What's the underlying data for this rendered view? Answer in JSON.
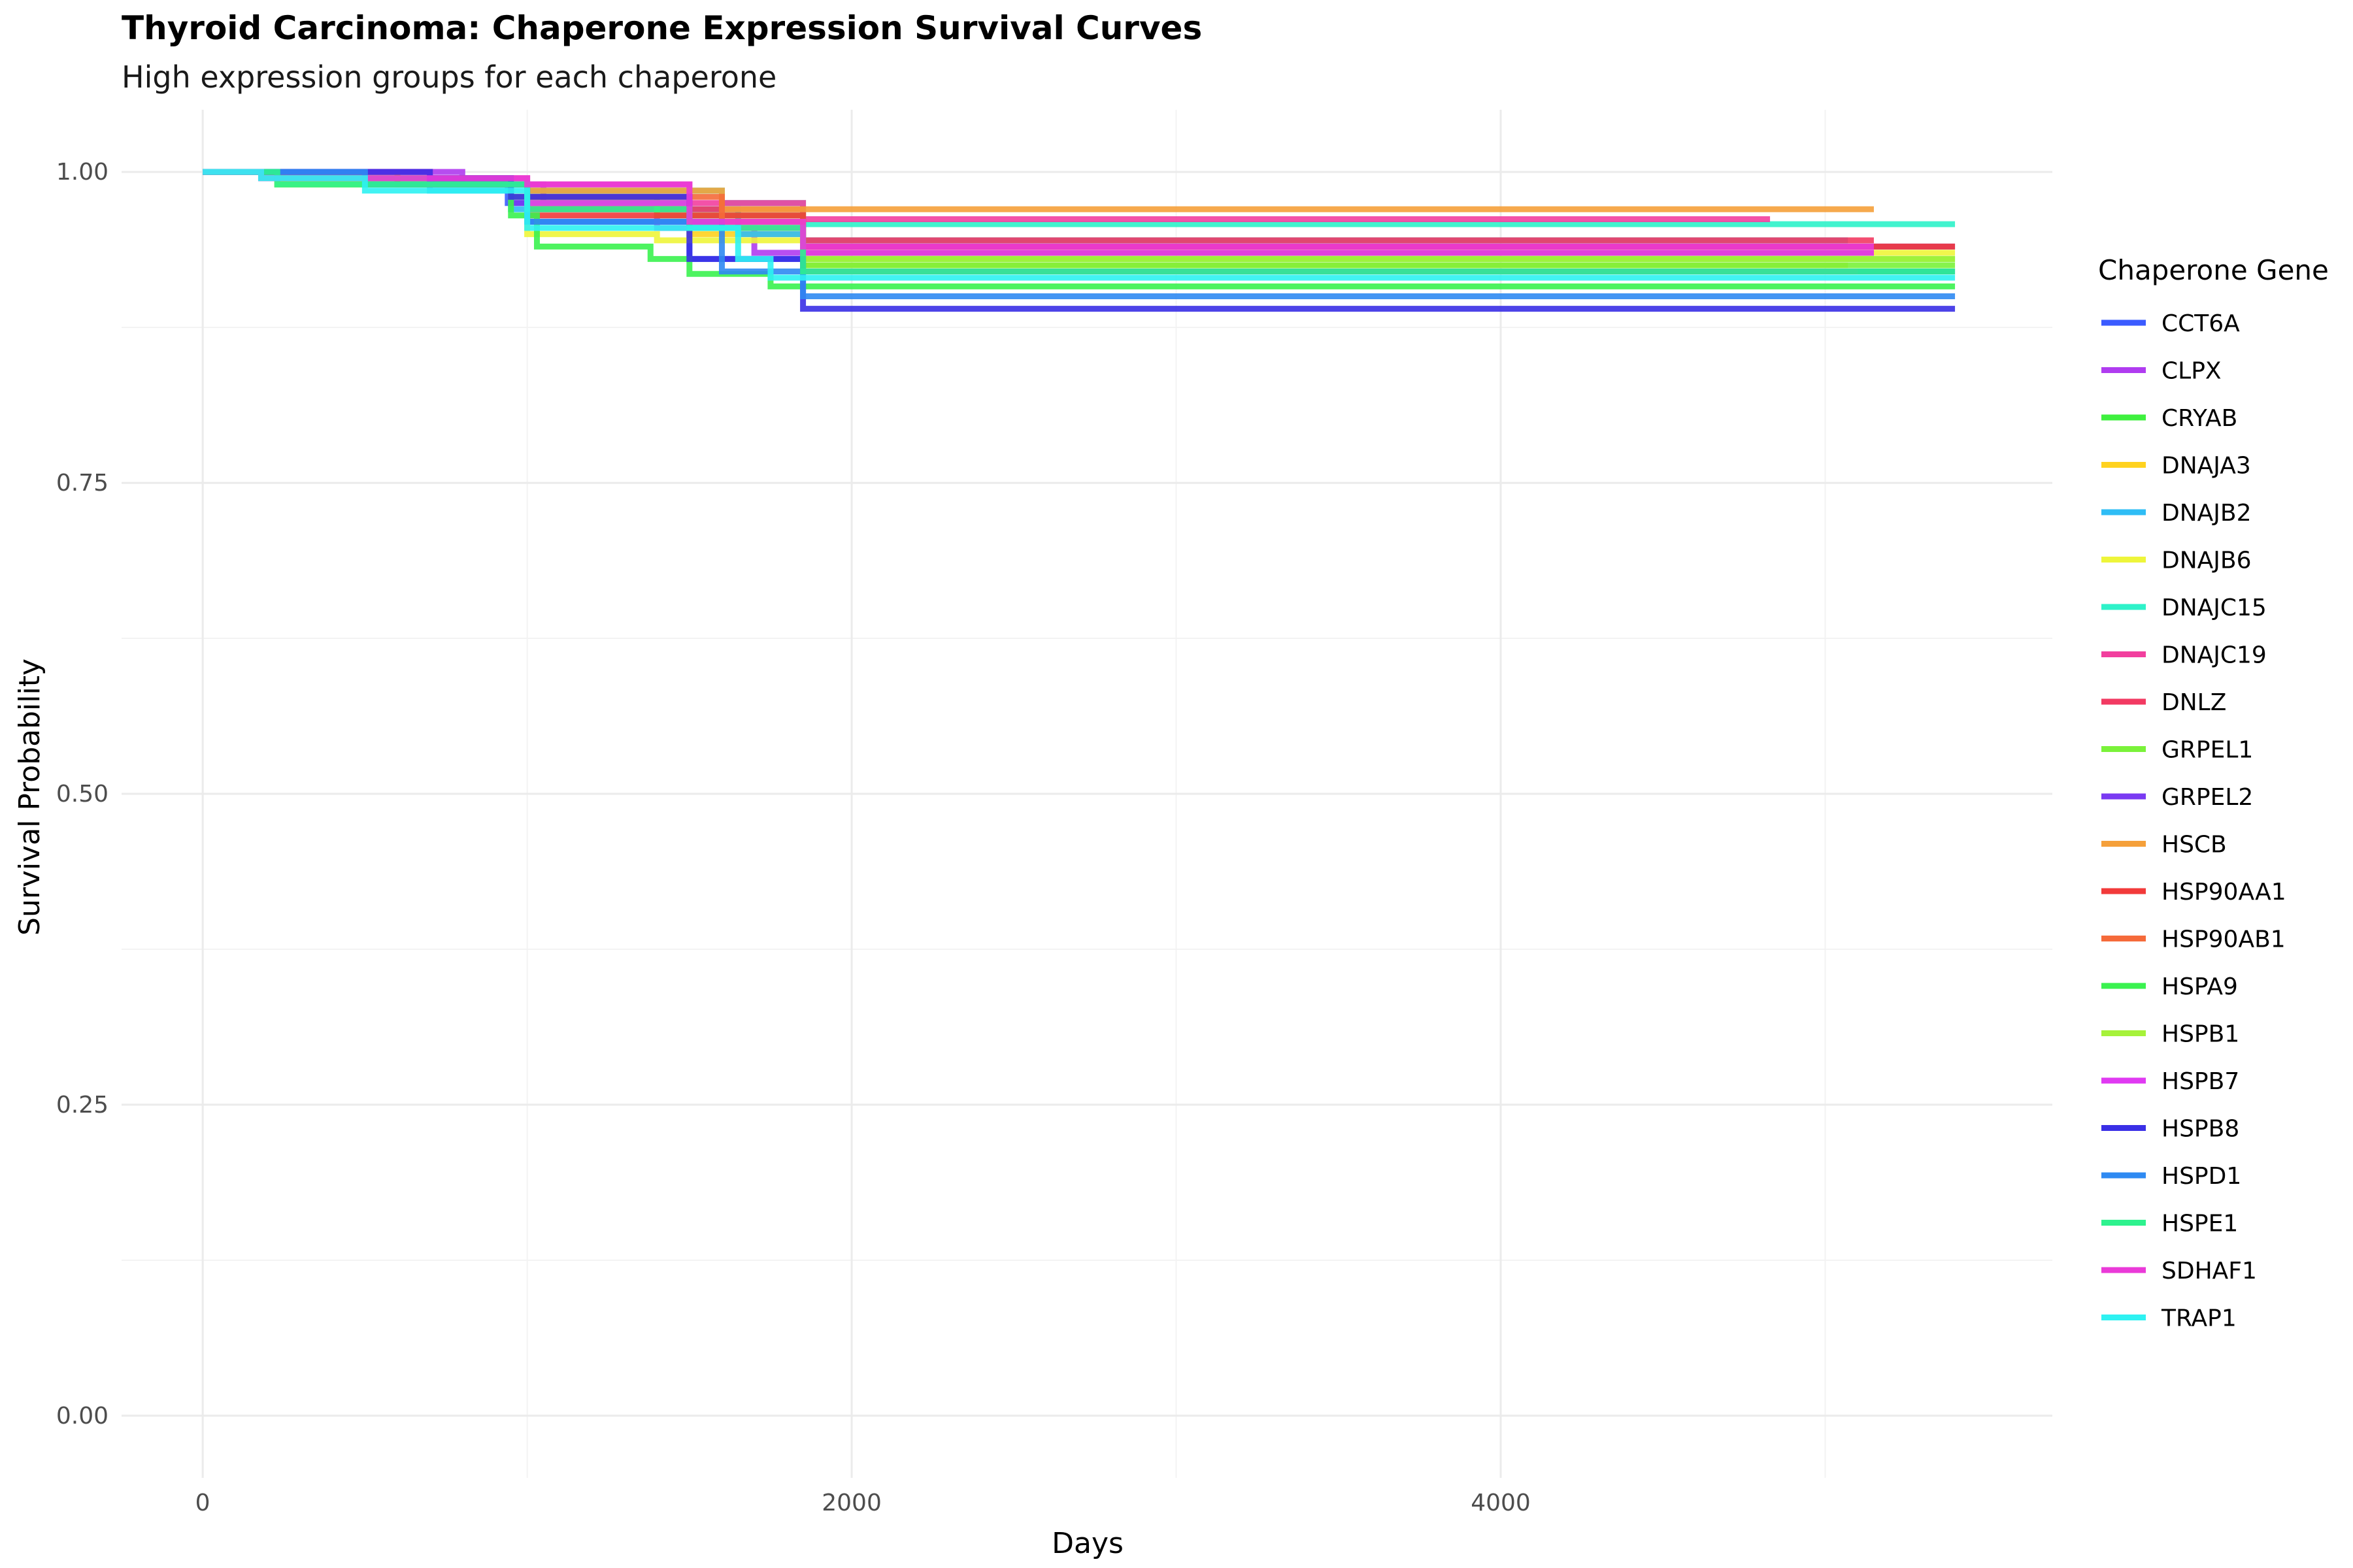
{
  "chart_data": {
    "type": "line",
    "title": "Thyroid Carcinoma: Chaperone Expression Survival Curves",
    "subtitle": "High expression groups for each chaperone",
    "xlabel": "Days",
    "ylabel": "Survival Probability",
    "xlim": [
      -250,
      5700
    ],
    "ylim": [
      -0.05,
      1.05
    ],
    "x_ticks": [
      0,
      2000,
      4000
    ],
    "x_tick_labels": [
      "0",
      "2000",
      "4000"
    ],
    "x_minor_ticks": [
      1000,
      3000,
      5000
    ],
    "y_ticks": [
      0,
      0.25,
      0.5,
      0.75,
      1.0
    ],
    "y_tick_labels": [
      "0.00",
      "0.25",
      "0.50",
      "0.75",
      "1.00"
    ],
    "y_minor_ticks": [
      0.125,
      0.375,
      0.625,
      0.875
    ],
    "grid": true,
    "legend_title": "Chaperone Gene",
    "legend_position": "right",
    "series": [
      {
        "name": "CCT6A",
        "color": "#3b5bff",
        "steps": [
          [
            0,
            1.0
          ],
          [
            700,
            0.99
          ],
          [
            940,
            0.975
          ],
          [
            1000,
            0.96
          ],
          [
            1500,
            0.93
          ],
          [
            1850,
            0.92
          ],
          [
            5400,
            0.92
          ]
        ]
      },
      {
        "name": "CLPX",
        "color": "#b03cf0",
        "steps": [
          [
            0,
            1.0
          ],
          [
            800,
            0.99
          ],
          [
            1050,
            0.975
          ],
          [
            1400,
            0.955
          ],
          [
            1700,
            0.935
          ],
          [
            1850,
            0.92
          ],
          [
            5100,
            0.92
          ]
        ]
      },
      {
        "name": "CRYAB",
        "color": "#3ef03e",
        "steps": [
          [
            0,
            1.0
          ],
          [
            230,
            0.99
          ],
          [
            1000,
            0.975
          ],
          [
            1500,
            0.955
          ],
          [
            1850,
            0.93
          ],
          [
            5400,
            0.93
          ]
        ]
      },
      {
        "name": "DNAJA3",
        "color": "#ffd21f",
        "steps": [
          [
            0,
            1.0
          ],
          [
            600,
            0.99
          ],
          [
            1000,
            0.97
          ],
          [
            1500,
            0.95
          ],
          [
            1850,
            0.925
          ],
          [
            5070,
            0.925
          ]
        ]
      },
      {
        "name": "DNAJB2",
        "color": "#2fbdf5",
        "steps": [
          [
            0,
            1.0
          ],
          [
            700,
            0.985
          ],
          [
            950,
            0.97
          ],
          [
            1650,
            0.95
          ],
          [
            1850,
            0.945
          ],
          [
            5070,
            0.945
          ]
        ]
      },
      {
        "name": "DNAJB6",
        "color": "#eef53a",
        "steps": [
          [
            0,
            1.0
          ],
          [
            250,
            0.99
          ],
          [
            1000,
            0.95
          ],
          [
            1400,
            0.945
          ],
          [
            1850,
            0.935
          ],
          [
            5400,
            0.935
          ]
        ]
      },
      {
        "name": "DNAJC15",
        "color": "#2ef2c9",
        "steps": [
          [
            0,
            1.0
          ],
          [
            500,
            0.99
          ],
          [
            1000,
            0.985
          ],
          [
            1600,
            0.975
          ],
          [
            1850,
            0.958
          ],
          [
            5400,
            0.958
          ]
        ]
      },
      {
        "name": "DNAJC19",
        "color": "#f23f9e",
        "steps": [
          [
            0,
            1.0
          ],
          [
            180,
            0.995
          ],
          [
            1000,
            0.99
          ],
          [
            1500,
            0.975
          ],
          [
            1850,
            0.962
          ],
          [
            4830,
            0.962
          ]
        ]
      },
      {
        "name": "DNLZ",
        "color": "#f23a62",
        "steps": [
          [
            0,
            1.0
          ],
          [
            600,
            0.99
          ],
          [
            1000,
            0.97
          ],
          [
            1850,
            0.945
          ],
          [
            5150,
            0.945
          ]
        ]
      },
      {
        "name": "GRPEL1",
        "color": "#7af23a",
        "steps": [
          [
            0,
            1.0
          ],
          [
            230,
            0.99
          ],
          [
            950,
            0.98
          ],
          [
            1400,
            0.965
          ],
          [
            1850,
            0.925
          ],
          [
            5400,
            0.925
          ]
        ]
      },
      {
        "name": "GRPEL2",
        "color": "#7a3af2",
        "steps": [
          [
            0,
            1.0
          ],
          [
            700,
            0.995
          ],
          [
            950,
            0.975
          ],
          [
            1500,
            0.955
          ],
          [
            1850,
            0.94
          ],
          [
            5400,
            0.94
          ]
        ]
      },
      {
        "name": "HSCB",
        "color": "#f5a03a",
        "steps": [
          [
            0,
            1.0
          ],
          [
            500,
            0.99
          ],
          [
            1000,
            0.985
          ],
          [
            1600,
            0.97
          ],
          [
            5150,
            0.97
          ]
        ]
      },
      {
        "name": "HSP90AA1",
        "color": "#f23a3a",
        "steps": [
          [
            0,
            1.0
          ],
          [
            700,
            0.99
          ],
          [
            1000,
            0.965
          ],
          [
            1850,
            0.94
          ],
          [
            5400,
            0.94
          ]
        ]
      },
      {
        "name": "HSP90AB1",
        "color": "#f56a3a",
        "steps": [
          [
            0,
            1.0
          ],
          [
            600,
            0.99
          ],
          [
            1000,
            0.98
          ],
          [
            1600,
            0.96
          ],
          [
            1850,
            0.935
          ],
          [
            5150,
            0.935
          ]
        ]
      },
      {
        "name": "HSPA9",
        "color": "#3af24f",
        "steps": [
          [
            0,
            1.0
          ],
          [
            230,
            0.995
          ],
          [
            950,
            0.965
          ],
          [
            1030,
            0.94
          ],
          [
            1380,
            0.93
          ],
          [
            1500,
            0.918
          ],
          [
            1750,
            0.908
          ],
          [
            5400,
            0.908
          ]
        ]
      },
      {
        "name": "HSPB1",
        "color": "#a6f23a",
        "steps": [
          [
            0,
            1.0
          ],
          [
            230,
            0.99
          ],
          [
            1000,
            0.975
          ],
          [
            1500,
            0.955
          ],
          [
            1850,
            0.93
          ],
          [
            5400,
            0.93
          ]
        ]
      },
      {
        "name": "HSPB7",
        "color": "#e03af2",
        "steps": [
          [
            0,
            1.0
          ],
          [
            700,
            0.99
          ],
          [
            1000,
            0.975
          ],
          [
            1500,
            0.955
          ],
          [
            1850,
            0.935
          ],
          [
            5150,
            0.935
          ]
        ]
      },
      {
        "name": "HSPB8",
        "color": "#3a2fe6",
        "steps": [
          [
            0,
            1.0
          ],
          [
            700,
            0.995
          ],
          [
            950,
            0.98
          ],
          [
            1500,
            0.93
          ],
          [
            1850,
            0.89
          ],
          [
            5400,
            0.89
          ]
        ]
      },
      {
        "name": "HSPD1",
        "color": "#2f8af2",
        "steps": [
          [
            0,
            1.0
          ],
          [
            500,
            0.99
          ],
          [
            1000,
            0.96
          ],
          [
            1600,
            0.92
          ],
          [
            1850,
            0.9
          ],
          [
            5400,
            0.9
          ]
        ]
      },
      {
        "name": "HSPE1",
        "color": "#2ef28e",
        "steps": [
          [
            0,
            1.0
          ],
          [
            230,
            0.99
          ],
          [
            1000,
            0.97
          ],
          [
            1500,
            0.955
          ],
          [
            1850,
            0.92
          ],
          [
            5400,
            0.92
          ]
        ]
      },
      {
        "name": "SDHAF1",
        "color": "#ea3ad8",
        "steps": [
          [
            0,
            1.0
          ],
          [
            180,
            0.995
          ],
          [
            1000,
            0.99
          ],
          [
            1500,
            0.96
          ],
          [
            1850,
            0.94
          ],
          [
            5150,
            0.94
          ]
        ]
      },
      {
        "name": "TRAP1",
        "color": "#2ef2f2",
        "steps": [
          [
            0,
            1.0
          ],
          [
            180,
            0.995
          ],
          [
            500,
            0.985
          ],
          [
            1000,
            0.955
          ],
          [
            1650,
            0.93
          ],
          [
            1750,
            0.915
          ],
          [
            5400,
            0.915
          ]
        ]
      }
    ]
  }
}
